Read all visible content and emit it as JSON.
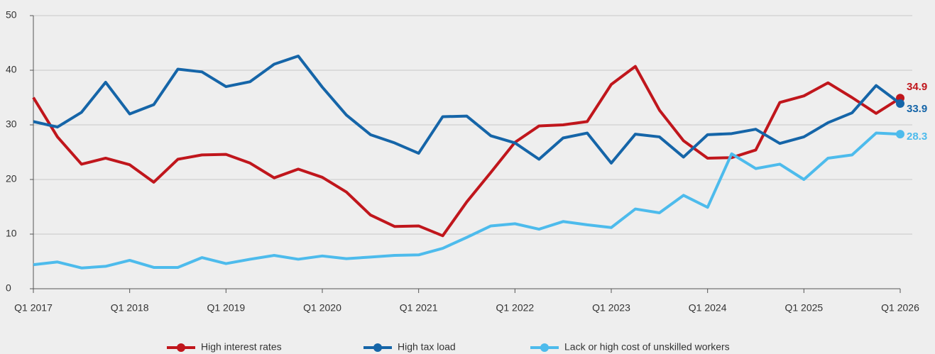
{
  "chart_data": {
    "type": "line",
    "categories": [
      "Q1 2017",
      null,
      null,
      null,
      "Q1 2018",
      null,
      null,
      null,
      "Q1 2019",
      null,
      null,
      null,
      "Q1 2020",
      null,
      null,
      null,
      "Q1 2021",
      null,
      null,
      null,
      "Q1 2022",
      null,
      null,
      null,
      "Q1 2023",
      null,
      null,
      null,
      "Q1 2024",
      null,
      null,
      null,
      "Q1 2025",
      null,
      null,
      null,
      "Q1 2026"
    ],
    "series": [
      {
        "name": "High interest rates",
        "color": "#c0161c",
        "values": [
          35,
          27.8,
          22.8,
          23.9,
          22.7,
          19.5,
          23.7,
          24.5,
          24.6,
          23,
          20.3,
          21.9,
          20.4,
          17.7,
          13.5,
          11.4,
          11.5,
          9.7,
          15.9,
          21.3,
          26.8,
          29.8,
          30,
          30.6,
          37.4,
          40.7,
          32.7,
          27.1,
          23.9,
          24,
          25.4,
          34.1,
          35.3,
          37.7,
          35,
          32.1,
          34.9
        ]
      },
      {
        "name": "High tax load",
        "color": "#1565a8",
        "values": [
          30.6,
          29.6,
          32.3,
          37.8,
          32,
          33.7,
          40.2,
          39.7,
          37,
          37.9,
          41.1,
          42.6,
          36.9,
          31.8,
          28.2,
          26.7,
          24.8,
          31.5,
          31.6,
          28,
          26.7,
          23.7,
          27.6,
          28.5,
          23,
          28.3,
          27.8,
          24.1,
          28.2,
          28.4,
          29.2,
          26.6,
          27.8,
          30.4,
          32.2,
          37.2,
          33.9
        ]
      },
      {
        "name": "Lack or high cost of unskilled workers",
        "color": "#4dbbec",
        "values": [
          4.4,
          4.9,
          3.8,
          4.1,
          5.2,
          3.9,
          3.9,
          5.7,
          4.6,
          5.4,
          6.1,
          5.4,
          6,
          5.5,
          5.8,
          6.1,
          6.2,
          7.4,
          9.4,
          11.5,
          11.9,
          10.9,
          12.3,
          11.7,
          11.2,
          14.6,
          13.9,
          17.1,
          14.9,
          24.7,
          22,
          22.8,
          20,
          23.9,
          24.5,
          28.5,
          28.3
        ]
      }
    ],
    "ylim": [
      0,
      50
    ],
    "yticks": [
      0,
      10,
      20,
      30,
      40,
      50
    ],
    "grid": true,
    "legend": "bottom"
  }
}
